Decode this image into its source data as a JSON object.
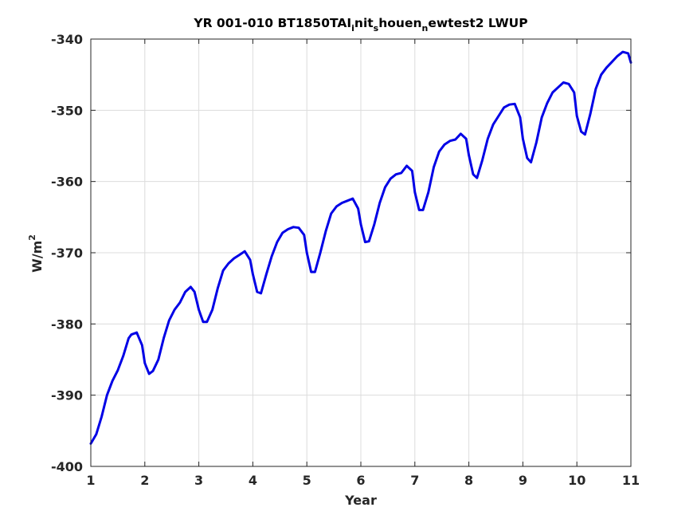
{
  "chart_data": {
    "type": "line",
    "title": "YR 001-010 BT1850TAI",
    "title_parts": [
      "i",
      "nit",
      "s",
      "houen",
      "n",
      "ewtest2 LWUP"
    ],
    "xlabel": "Year",
    "ylabel": "W/m",
    "ylabel_superscript": "2",
    "xlim": [
      1,
      11
    ],
    "ylim": [
      -400,
      -340
    ],
    "xticks": [
      "1",
      "2",
      "3",
      "4",
      "5",
      "6",
      "7",
      "8",
      "9",
      "10",
      "11"
    ],
    "yticks": [
      "-400",
      "-390",
      "-380",
      "-370",
      "-360",
      "-350",
      "-340"
    ],
    "grid": true,
    "series": [
      {
        "color": "#0000e6",
        "x": [
          1.0,
          1.1,
          1.2,
          1.3,
          1.4,
          1.5,
          1.6,
          1.7,
          1.75,
          1.85,
          1.95,
          2.0,
          2.08,
          2.15,
          2.25,
          2.35,
          2.45,
          2.55,
          2.65,
          2.75,
          2.85,
          2.92,
          3.0,
          3.08,
          3.15,
          3.25,
          3.35,
          3.45,
          3.55,
          3.65,
          3.75,
          3.85,
          3.95,
          4.0,
          4.08,
          4.15,
          4.25,
          4.35,
          4.45,
          4.55,
          4.65,
          4.75,
          4.85,
          4.95,
          5.0,
          5.08,
          5.15,
          5.25,
          5.35,
          5.45,
          5.55,
          5.65,
          5.75,
          5.85,
          5.95,
          6.0,
          6.08,
          6.15,
          6.25,
          6.35,
          6.45,
          6.55,
          6.65,
          6.75,
          6.85,
          6.95,
          7.0,
          7.08,
          7.15,
          7.25,
          7.35,
          7.45,
          7.55,
          7.65,
          7.75,
          7.85,
          7.95,
          8.0,
          8.08,
          8.15,
          8.25,
          8.35,
          8.45,
          8.55,
          8.65,
          8.75,
          8.85,
          8.95,
          9.0,
          9.08,
          9.15,
          9.25,
          9.35,
          9.45,
          9.55,
          9.65,
          9.75,
          9.85,
          9.95,
          10.0,
          10.08,
          10.15,
          10.25,
          10.35,
          10.45,
          10.55,
          10.65,
          10.75,
          10.85,
          10.95,
          11.0
        ],
        "y": [
          -396.8,
          -395.5,
          -393.0,
          -390.0,
          -388.0,
          -386.5,
          -384.5,
          -382.0,
          -381.5,
          -381.2,
          -383.0,
          -385.5,
          -387.0,
          -386.6,
          -385.0,
          -382.0,
          -379.5,
          -378.0,
          -377.0,
          -375.5,
          -374.8,
          -375.5,
          -378.0,
          -379.7,
          -379.7,
          -378.0,
          -375.0,
          -372.5,
          -371.5,
          -370.8,
          -370.3,
          -369.8,
          -371.0,
          -373.0,
          -375.5,
          -375.7,
          -373.0,
          -370.5,
          -368.5,
          -367.2,
          -366.7,
          -366.4,
          -366.5,
          -367.5,
          -370.0,
          -372.7,
          -372.7,
          -370.0,
          -367.0,
          -364.5,
          -363.5,
          -363.0,
          -362.7,
          -362.4,
          -363.8,
          -366.0,
          -368.5,
          -368.4,
          -366.0,
          -363.0,
          -360.8,
          -359.6,
          -359.0,
          -358.8,
          -357.8,
          -358.5,
          -361.5,
          -364.0,
          -364.0,
          -361.5,
          -358.0,
          -355.8,
          -354.8,
          -354.3,
          -354.1,
          -353.3,
          -354.0,
          -356.3,
          -359.0,
          -359.5,
          -357.0,
          -354.0,
          -352.0,
          -350.8,
          -349.6,
          -349.2,
          -349.1,
          -351.0,
          -354.0,
          -356.7,
          -357.3,
          -354.5,
          -351.0,
          -349.0,
          -347.5,
          -346.8,
          -346.1,
          -346.3,
          -347.5,
          -350.8,
          -353.0,
          -353.4,
          -350.5,
          -347.0,
          -345.0,
          -344.0,
          -343.2,
          -342.4,
          -341.8,
          -342.0,
          -343.3
        ]
      }
    ]
  }
}
